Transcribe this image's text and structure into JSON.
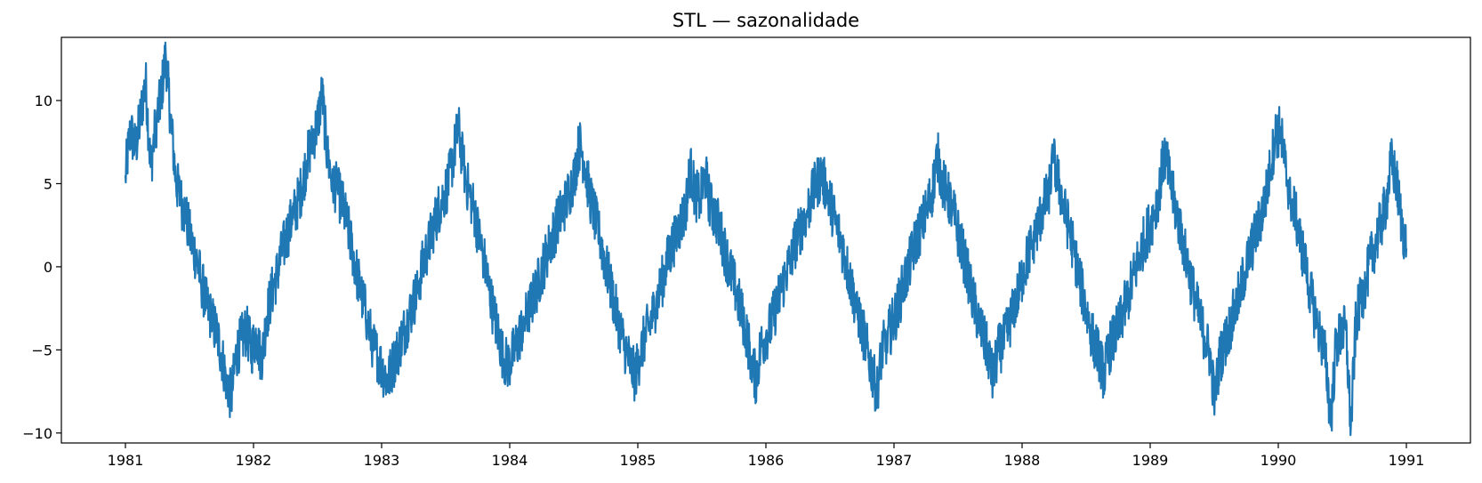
{
  "chart_data": {
    "type": "line",
    "title": "STL — sazonalidade",
    "xlabel": "",
    "ylabel": "",
    "xlim": [
      1980.5,
      1991.5
    ],
    "ylim": [
      -10.6,
      13.8
    ],
    "grid": false,
    "x_ticks": [
      1981,
      1982,
      1983,
      1984,
      1985,
      1986,
      1987,
      1988,
      1989,
      1990,
      1991
    ],
    "x_tick_labels": [
      "1981",
      "1982",
      "1983",
      "1984",
      "1985",
      "1986",
      "1987",
      "1988",
      "1989",
      "1990",
      "1991"
    ],
    "y_ticks": [
      -10,
      -5,
      0,
      5,
      10
    ],
    "y_tick_labels": [
      "−10",
      "−5",
      "0",
      "5",
      "10"
    ],
    "series": [
      {
        "color": "#1f77b4",
        "x_start": 1981.0,
        "x_end": 1991.0,
        "values": [
          5.5,
          8.2,
          7.1,
          9.0,
          11.2,
          6.0,
          8.5,
          10.1,
          12.7,
          8.8,
          5.2,
          4.0,
          3.0,
          1.6,
          0.6,
          -0.8,
          -2.2,
          -3.1,
          -3.9,
          -5.2,
          -6.8,
          -7.9,
          -5.2,
          -4.4,
          -3.8,
          -5.0,
          -4.1,
          -5.8,
          -3.0,
          -1.6,
          -0.5,
          0.8,
          1.9,
          2.8,
          3.7,
          4.8,
          6.4,
          7.6,
          8.5,
          10.4,
          6.8,
          5.2,
          4.6,
          3.8,
          2.5,
          1.0,
          -0.6,
          -1.9,
          -3.2,
          -4.6,
          -5.4,
          -6.2,
          -6.9,
          -5.9,
          -5.1,
          -4.1,
          -3.2,
          -2.3,
          -1.2,
          0.2,
          1.2,
          2.3,
          3.4,
          4.2,
          5.0,
          6.6,
          8.4,
          6.1,
          4.6,
          3.6,
          2.0,
          0.6,
          -1.1,
          -2.8,
          -4.1,
          -5.6,
          -5.9,
          -5.1,
          -4.3,
          -3.4,
          -2.6,
          -1.8,
          -0.8,
          0.2,
          1.2,
          2.1,
          3.0,
          3.6,
          4.5,
          5.5,
          7.4,
          6.3,
          4.4,
          3.1,
          1.8,
          0.4,
          -0.9,
          -2.3,
          -3.6,
          -4.8,
          -5.7,
          -6.6,
          -5.4,
          -4.2,
          -3.4,
          -2.5,
          -1.4,
          -0.2,
          0.9,
          1.8,
          2.6,
          3.3,
          5.9,
          4.3,
          4.1,
          5.5,
          3.6,
          3.1,
          2.1,
          0.8,
          -0.3,
          -1.4,
          -2.6,
          -3.8,
          -5.4,
          -6.8,
          -4.8,
          -4.2,
          -3.5,
          -2.4,
          -1.5,
          -0.4,
          0.6,
          1.6,
          2.4,
          3.2,
          4.1,
          5.0,
          5.5,
          4.6,
          3.6,
          2.5,
          1.4,
          0.1,
          -1.2,
          -2.5,
          -3.6,
          -4.9,
          -6.2,
          -7.6,
          -5.1,
          -4.3,
          -3.5,
          -2.6,
          -1.4,
          -0.4,
          0.8,
          1.8,
          2.6,
          3.5,
          4.6,
          6.7,
          5.1,
          4.3,
          3.5,
          2.2,
          0.9,
          -0.4,
          -1.9,
          -3.1,
          -4.2,
          -5.1,
          -6.8,
          -5.1,
          -4.6,
          -3.8,
          -2.6,
          -1.6,
          -0.4,
          0.7,
          1.6,
          2.5,
          3.6,
          4.4,
          6.4,
          5.2,
          3.6,
          2.4,
          1.1,
          -0.5,
          -1.9,
          -3.3,
          -4.5,
          -5.2,
          -6.6,
          -5.0,
          -4.3,
          -3.6,
          -2.6,
          -1.6,
          -0.5,
          0.6,
          1.6,
          2.4,
          3.2,
          4.6,
          6.8,
          5.4,
          3.8,
          2.5,
          1.1,
          -0.4,
          -1.8,
          -3.1,
          -4.2,
          -5.3,
          -7.9,
          -5.5,
          -4.6,
          -3.6,
          -2.6,
          -1.5,
          -0.3,
          0.8,
          1.8,
          2.8,
          4.0,
          5.8,
          7.9,
          8.2,
          6.0,
          4.2,
          3.1,
          1.5,
          0.0,
          -1.6,
          -3.1,
          -4.3,
          -5.5,
          -9.3,
          -4.9,
          -4.0,
          -3.8,
          -9.6,
          -3.2,
          -2.0,
          -0.8,
          0.5,
          1.6,
          2.6,
          3.8,
          6.3,
          5.2,
          2.8,
          1.1
        ]
      }
    ]
  }
}
